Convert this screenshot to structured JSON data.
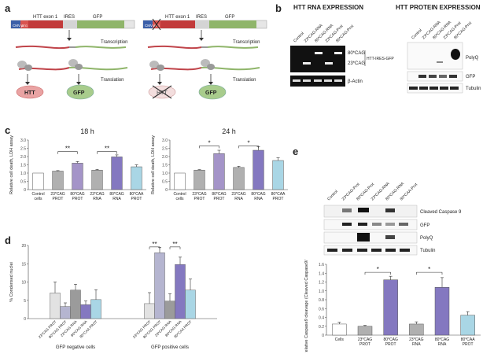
{
  "panels": {
    "a": {
      "letter": "a",
      "left": {
        "cmv": "CMV p",
        "atg": "ATG",
        "exon": "HTT exon 1",
        "ires": "IRES",
        "gfp": "GFP",
        "transcription": "Transcription",
        "translation": "Translation",
        "htt": "HTT",
        "gfp_protein": "GFP"
      },
      "right": {
        "cmv": "CMV p",
        "atg": "ATG",
        "exon": "HTT exon 1",
        "ires": "IRES",
        "gfp": "GFP",
        "transcription": "Transcription",
        "translation": "Translation",
        "htt": "HTT",
        "gfp_protein": "GFP"
      }
    },
    "b": {
      "letter": "b",
      "rna_title": "HTT RNA EXPRESSION",
      "protein_title": "HTT PROTEIN EXPRESSION",
      "rna_lanes": [
        "Control",
        "23*CAG-RNA",
        "80*CAG-RNA",
        "23*CAG-Prot",
        "80*CAG-Prot"
      ],
      "protein_lanes": [
        "Control",
        "23*CAG-RNA",
        "80*CAG-RNA",
        "23*CAG-Prot",
        "80*CAG-Prot"
      ],
      "rna_band_80": "80*CAG",
      "rna_band_23": "23*CAG",
      "rna_construct": "HTT-IRES-GFP",
      "rna_actin": "β-Actin",
      "prot_polyq": "PolyQ",
      "prot_gfp": "GFP",
      "prot_tubulin": "Tubulin"
    },
    "c": {
      "letter": "c",
      "left_title": "18 h",
      "right_title": "24 h",
      "ylabel": "Relative cell death, LDH assay",
      "sig_left": [
        "**",
        "**"
      ],
      "sig_right": [
        "*",
        "*"
      ]
    },
    "d": {
      "letter": "d",
      "ylabel": "% Condensed nuclei",
      "group_neg": "GFP negative cells",
      "group_pos": "GFP positive cells",
      "sig": [
        "**",
        "**"
      ]
    },
    "e": {
      "letter": "e",
      "lanes": [
        "Control",
        "23*CAG-Prot",
        "80*CAG-Prot",
        "23*CAG-RNA",
        "80*CAG-RNA",
        "80*CAA-Prot"
      ],
      "blot_casp": "Cleaved Caspase 9",
      "blot_gfp": "GFP",
      "blot_polyq": "PolyQ",
      "blot_tubulin": "Tubulin",
      "ylabel": "Relative Caspase9 cleavage (Cleaved Caspase9/Tubulin)",
      "sig": [
        "*",
        "*"
      ]
    }
  },
  "chart_data": [
    {
      "type": "bar",
      "title": "18 h",
      "ylabel": "Relative cell death, LDH assay",
      "categories": [
        "Control cells",
        "23*CAG PROT",
        "80*CAG PROT",
        "23*CAG RNA",
        "80*CAG RNA",
        "80*CAA PROT"
      ],
      "values": [
        1.0,
        1.12,
        1.6,
        1.18,
        1.98,
        1.38
      ],
      "errors": [
        0.0,
        0.03,
        0.1,
        0.04,
        0.12,
        0.12
      ],
      "ylim": [
        0,
        3
      ],
      "yticks": [
        "0",
        "0.5",
        "1.0",
        "1.5",
        "2.0",
        "2.5",
        "3.0"
      ],
      "colors": [
        "#ffffff",
        "#b0b0b0",
        "#a494c8",
        "#b0b0b0",
        "#8478c0",
        "#a9d6e5"
      ]
    },
    {
      "type": "bar",
      "title": "24 h",
      "ylabel": "Relative cell death, LDH assay",
      "categories": [
        "Control cells",
        "23*CAG PROT",
        "80*CAG PROT",
        "23*CAG RNA",
        "80*CAG RNA",
        "80*CAA PROT"
      ],
      "values": [
        1.0,
        1.18,
        2.18,
        1.34,
        2.38,
        1.76
      ],
      "errors": [
        0.0,
        0.03,
        0.2,
        0.07,
        0.22,
        0.16
      ],
      "ylim": [
        0,
        3
      ],
      "yticks": [
        "0",
        "0.5",
        "1.0",
        "1.5",
        "2.0",
        "2.5",
        "3.0"
      ],
      "colors": [
        "#ffffff",
        "#b0b0b0",
        "#a494c8",
        "#b0b0b0",
        "#8478c0",
        "#a9d6e5"
      ]
    },
    {
      "type": "bar",
      "ylabel": "% Condensed nuclei",
      "categories": [
        "23*CAG PROT",
        "80*CAG PROT",
        "23*CAG RNA",
        "80*CAG RNA",
        "80*CAA PROT"
      ],
      "groups": [
        "GFP negative cells",
        "GFP positive cells"
      ],
      "series": [
        {
          "group": "GFP negative cells",
          "values": [
            7.0,
            3.3,
            7.8,
            3.8,
            5.2
          ],
          "errors": [
            3.0,
            1.0,
            1.6,
            1.0,
            2.7
          ]
        },
        {
          "group": "GFP positive cells",
          "values": [
            4.1,
            18.0,
            4.8,
            14.8,
            7.8
          ],
          "errors": [
            3.0,
            1.5,
            2.0,
            2.0,
            3.0
          ]
        }
      ],
      "ylim": [
        0,
        20
      ],
      "yticks": [
        "0",
        "5",
        "10",
        "15",
        "20"
      ],
      "colors": [
        "#e2e2e2",
        "#b5b5d0",
        "#9b9b9b",
        "#8478c0",
        "#a9d6e5"
      ]
    },
    {
      "type": "bar",
      "ylabel": "Relative Caspase9 cleavage (Cleaved Caspase9/Tubulin)",
      "categories": [
        "Cells",
        "23*CAG PROT",
        "80*CAG PROT",
        "23*CAG RNA",
        "80*CAG RNA",
        "80*CAA PROT"
      ],
      "values": [
        0.25,
        0.2,
        1.25,
        0.25,
        1.08,
        0.45
      ],
      "errors": [
        0.04,
        0.02,
        0.08,
        0.05,
        0.22,
        0.08
      ],
      "ylim": [
        0,
        1.6
      ],
      "yticks": [
        "0",
        "0.2",
        "0.4",
        "0.6",
        "0.8",
        "1.0",
        "1.2",
        "1.4",
        "1.6"
      ],
      "colors": [
        "#ffffff",
        "#b0b0b0",
        "#8478c0",
        "#b0b0b0",
        "#8478c0",
        "#a9d6e5"
      ]
    }
  ]
}
